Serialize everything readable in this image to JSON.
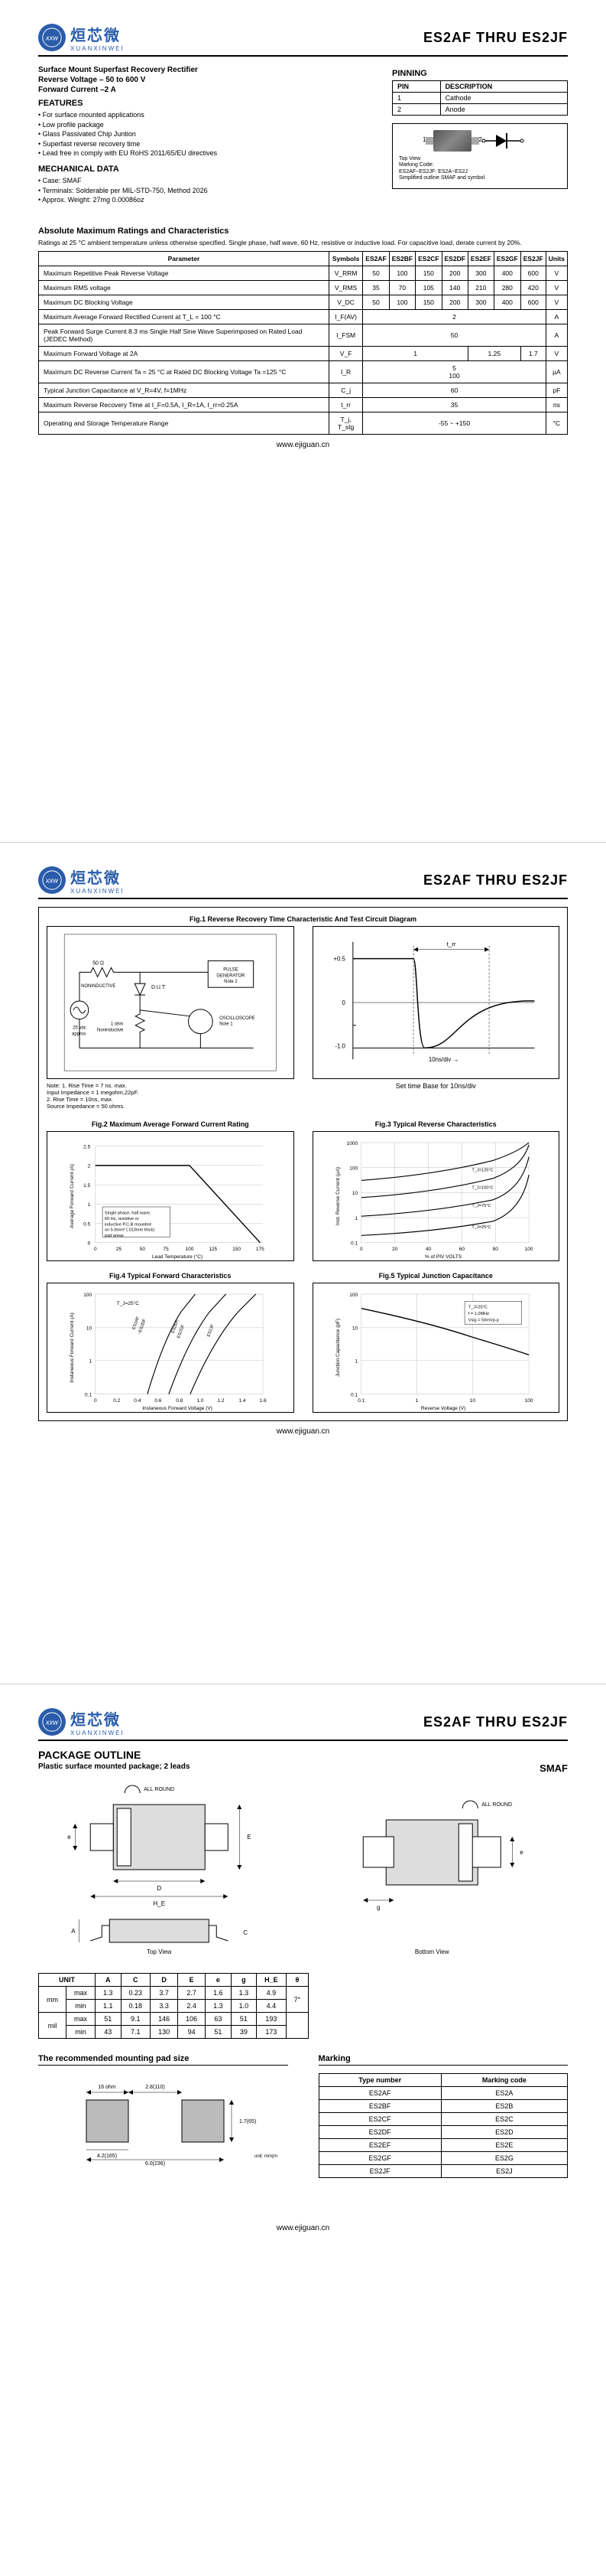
{
  "logo": {
    "cn": "烜芯微",
    "en": "XUANXINWEI"
  },
  "header_title": "ES2AF  THRU  ES2JF",
  "page1": {
    "title_line1": "Surface Mount Superfast Recovery Rectifier",
    "title_line2": "Reverse Voltage – 50 to 600 V",
    "title_line3": "Forward Current –2 A",
    "features_heading": "FEATURES",
    "features": [
      "For surface mounted applications",
      "Low profile package",
      "Glass Passivated Chip Juntion",
      "Superfast reverse recovery time",
      "Lead free in comply with EU RoHS 2011/65/EU directives"
    ],
    "mech_heading": "MECHANICAL DATA",
    "mech": [
      "Case: SMAF",
      "Terminals: Solderable per MIL-STD-750, Method 2026",
      "Approx. Weight: 27mg  0.00086oz"
    ],
    "pinning_heading": "PINNING",
    "pin_table": {
      "headers": [
        "PIN",
        "DESCRIPTION"
      ],
      "rows": [
        [
          "1",
          "Cathode"
        ],
        [
          "2",
          "Anode"
        ]
      ]
    },
    "pin_notes": [
      "Top View",
      "Marking Code:",
      "ES2AF~ES2JF: ES2A~ES2J",
      "Simplified outline SMAF and symbol"
    ],
    "ratings_heading": "Absolute Maximum Ratings and Characteristics",
    "ratings_note": "Ratings at 25 °C ambient temperature unless otherwise specified. Single phase, half wave, 60 Hz, resistive or inductive load. For capacitive load, derate current by 20%.",
    "ratings_headers": [
      "Parameter",
      "Symbols",
      "ES2AF",
      "ES2BF",
      "ES2CF",
      "ES2DF",
      "ES2EF",
      "ES2GF",
      "ES2JF",
      "Units"
    ],
    "ratings_rows": [
      {
        "param": "Maximum Repetitive Peak Reverse Voltage",
        "sym": "V_RRM",
        "vals": [
          "50",
          "100",
          "150",
          "200",
          "300",
          "400",
          "600"
        ],
        "unit": "V"
      },
      {
        "param": "Maximum RMS voltage",
        "sym": "V_RMS",
        "vals": [
          "35",
          "70",
          "105",
          "140",
          "210",
          "280",
          "420"
        ],
        "unit": "V"
      },
      {
        "param": "Maximum DC Blocking Voltage",
        "sym": "V_DC",
        "vals": [
          "50",
          "100",
          "150",
          "200",
          "300",
          "400",
          "600"
        ],
        "unit": "V"
      },
      {
        "param": "Maximum Average Forward Rectified Current at T_L = 100 °C",
        "sym": "I_F(AV)",
        "span": "2",
        "unit": "A"
      },
      {
        "param": "Peak Forward Surge Current 8.3 ms Single Half Sine Wave Superimposed on Rated Load (JEDEC Method)",
        "sym": "I_FSM",
        "span": "50",
        "unit": "A"
      },
      {
        "param": "Maximum  Forward Voltage at 2A",
        "sym": "V_F",
        "split": [
          {
            "cols": 4,
            "val": "1"
          },
          {
            "cols": 2,
            "val": "1.25"
          },
          {
            "cols": 1,
            "val": "1.7"
          }
        ],
        "unit": "V"
      },
      {
        "param": "Maximum DC Reverse Current     Ta = 25 °C\nat Rated DC Blocking Voltage      Ta =125 °C",
        "sym": "I_R",
        "span": "5\n100",
        "unit": "µA"
      },
      {
        "param": "Typical Junction Capacitance at V_R=4V, f=1MHz",
        "sym": "C_j",
        "span": "60",
        "unit": "pF"
      },
      {
        "param": "Maximum Reverse Recovery Time at I_F=0.5A, I_R=1A, I_rr=0.25A",
        "sym": "t_rr",
        "span": "35",
        "unit": "ns"
      },
      {
        "param": "Operating and Storage Temperature Range",
        "sym": "T_j, T_stg",
        "span": "-55 ~ +150",
        "unit": "°C"
      }
    ]
  },
  "page2": {
    "fig1_title": "Fig.1  Reverse Recovery Time Characteristic And Test Circuit Diagram",
    "fig1_notes": [
      "Note: 1. Rise Time = 7 ns. max.",
      "         Input Impedance = 1 megohm,22pF.",
      "      2. Rise Time = 10ns, max.",
      "         Source Impedance = 50 ohms."
    ],
    "fig1_settime": "Set time Base for 10ns/div",
    "fig2_title": "Fig.2  Maximum Average Forward Current Rating",
    "fig2_xlabel": "Lead Temperature (°C)",
    "fig2_ylabel": "Average Forward Current (A)",
    "fig3_title": "Fig.3  Typical Reverse Characteristics",
    "fig3_xlabel": "% of PIV VOLTS",
    "fig3_ylabel": "Inst. Reverse Current (µA)",
    "fig4_title": "Fig.4  Typical Forward Characteristics",
    "fig4_xlabel": "Instaneous Forward Voltage (V)",
    "fig4_ylabel": "Instaneous Forward Current (A)",
    "fig5_title": "Fig.5  Typical Junction Capacitance",
    "fig5_xlabel": "Reverse Voltage (V)",
    "fig5_ylabel": "Junction Capacitance (pF)"
  },
  "page3": {
    "pkg_heading": "PACKAGE  OUTLINE",
    "pkg_sub": "Plastic surface mounted package; 2 leads",
    "pkg_name": "SMAF",
    "top_view": "Top View",
    "bottom_view": "Bottom View",
    "dim_headers": [
      "UNIT",
      "A",
      "C",
      "D",
      "E",
      "e",
      "g",
      "H_E",
      "θ"
    ],
    "dim_rows": [
      [
        "mm",
        "max",
        "1.3",
        "0.23",
        "3.7",
        "2.7",
        "1.6",
        "1.3",
        "4.9",
        ""
      ],
      [
        "",
        "min",
        "1.1",
        "0.18",
        "3.3",
        "2.4",
        "1.3",
        "1.0",
        "4.4",
        "7°"
      ],
      [
        "mil",
        "max",
        "51",
        "9.1",
        "146",
        "106",
        "63",
        "51",
        "193",
        ""
      ],
      [
        "",
        "min",
        "43",
        "7.1",
        "130",
        "94",
        "51",
        "39",
        "173",
        ""
      ]
    ],
    "pad_heading": "The recommended mounting pad size",
    "pad_dims": [
      "16 ohm",
      "2.8(110)",
      "1.7(65)",
      "unit: mm(mil)",
      "4.2(165)",
      "6.0(236)"
    ],
    "marking_heading": "Marking",
    "marking_headers": [
      "Type number",
      "Marking code"
    ],
    "marking_rows": [
      [
        "ES2AF",
        "ES2A"
      ],
      [
        "ES2BF",
        "ES2B"
      ],
      [
        "ES2CF",
        "ES2C"
      ],
      [
        "ES2DF",
        "ES2D"
      ],
      [
        "ES2EF",
        "ES2E"
      ],
      [
        "ES2GF",
        "ES2G"
      ],
      [
        "ES2JF",
        "ES2J"
      ]
    ]
  },
  "footer_url": "www.ejiguan.cn"
}
